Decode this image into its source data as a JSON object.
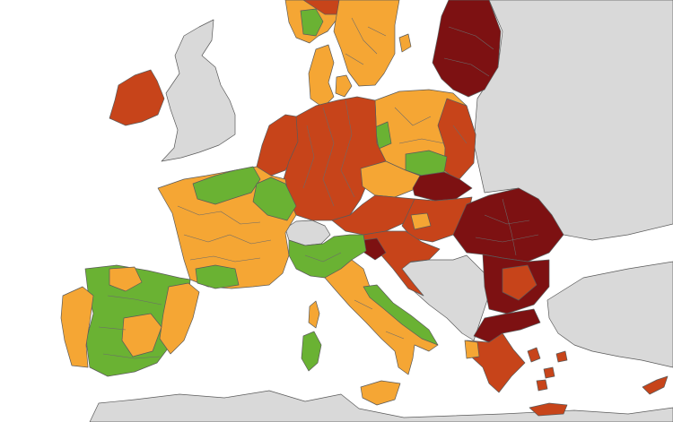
{
  "legend_colors": {
    "green": "#6ab233",
    "orange": "#f5a634",
    "red": "#c7441a",
    "dark_red": "#7d1112",
    "grey": "#d9d9d9",
    "sea": "#ffffff"
  },
  "regions": [
    {
      "name": "ireland",
      "risk": "red"
    },
    {
      "name": "united-kingdom",
      "risk": "grey"
    },
    {
      "name": "norway",
      "risk": "orange"
    },
    {
      "name": "norway-north",
      "risk": "red"
    },
    {
      "name": "sweden",
      "risk": "orange"
    },
    {
      "name": "finland",
      "risk": "orange"
    },
    {
      "name": "estonia-latvia-lithuania",
      "risk": "dark_red"
    },
    {
      "name": "denmark",
      "risk": "orange"
    },
    {
      "name": "netherlands-belgium",
      "risk": "red"
    },
    {
      "name": "germany",
      "risk": "red"
    },
    {
      "name": "poland",
      "risk": "orange"
    },
    {
      "name": "poland-east",
      "risk": "red"
    },
    {
      "name": "czechia",
      "risk": "orange"
    },
    {
      "name": "slovakia",
      "risk": "dark_red"
    },
    {
      "name": "austria",
      "risk": "red"
    },
    {
      "name": "hungary",
      "risk": "red"
    },
    {
      "name": "romania",
      "risk": "dark_red"
    },
    {
      "name": "bulgaria",
      "risk": "dark_red"
    },
    {
      "name": "greece",
      "risk": "red"
    },
    {
      "name": "switzerland",
      "risk": "grey"
    },
    {
      "name": "france-north",
      "risk": "green"
    },
    {
      "name": "france",
      "risk": "orange"
    },
    {
      "name": "spain",
      "risk": "green"
    },
    {
      "name": "portugal",
      "risk": "orange"
    },
    {
      "name": "italy-north",
      "risk": "green"
    },
    {
      "name": "italy-south",
      "risk": "orange"
    },
    {
      "name": "slovenia-croatia",
      "risk": "red"
    },
    {
      "name": "balkans-non-eu",
      "risk": "grey"
    },
    {
      "name": "corsica",
      "risk": "orange"
    },
    {
      "name": "sardinia",
      "risk": "green"
    },
    {
      "name": "sicily",
      "risk": "orange"
    },
    {
      "name": "crete",
      "risk": "red"
    },
    {
      "name": "cyprus",
      "risk": "red"
    }
  ]
}
